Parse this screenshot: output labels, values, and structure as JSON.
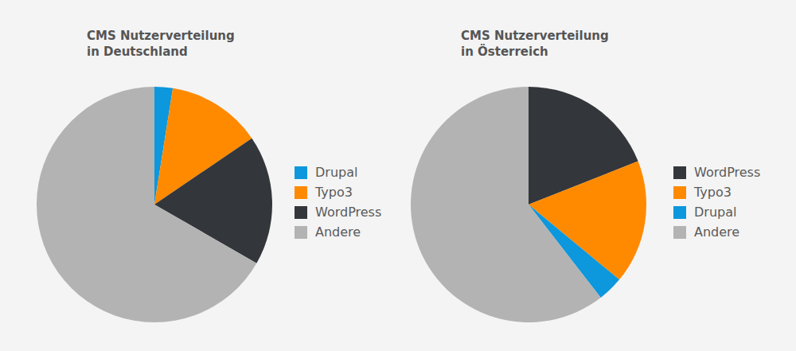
{
  "chart_data": [
    {
      "type": "pie",
      "title": "CMS Nutzerverteilung\nin Deutschland",
      "categories": [
        "Drupal",
        "Typo3",
        "WordPress",
        "Andere"
      ],
      "values": [
        2.5,
        13,
        17.8,
        66.7
      ],
      "colors": [
        "#0d97dc",
        "#ff8a00",
        "#33363b",
        "#b3b3b3"
      ],
      "legend": "right"
    },
    {
      "type": "pie",
      "title": "CMS Nutzerverteilung\nin Österreich",
      "categories": [
        "WordPress",
        "Typo3",
        "Drupal",
        "Andere"
      ],
      "values": [
        19,
        17,
        3.5,
        60.5
      ],
      "colors": [
        "#33363b",
        "#ff8a00",
        "#0d97dc",
        "#b3b3b3"
      ],
      "legend": "right"
    }
  ]
}
